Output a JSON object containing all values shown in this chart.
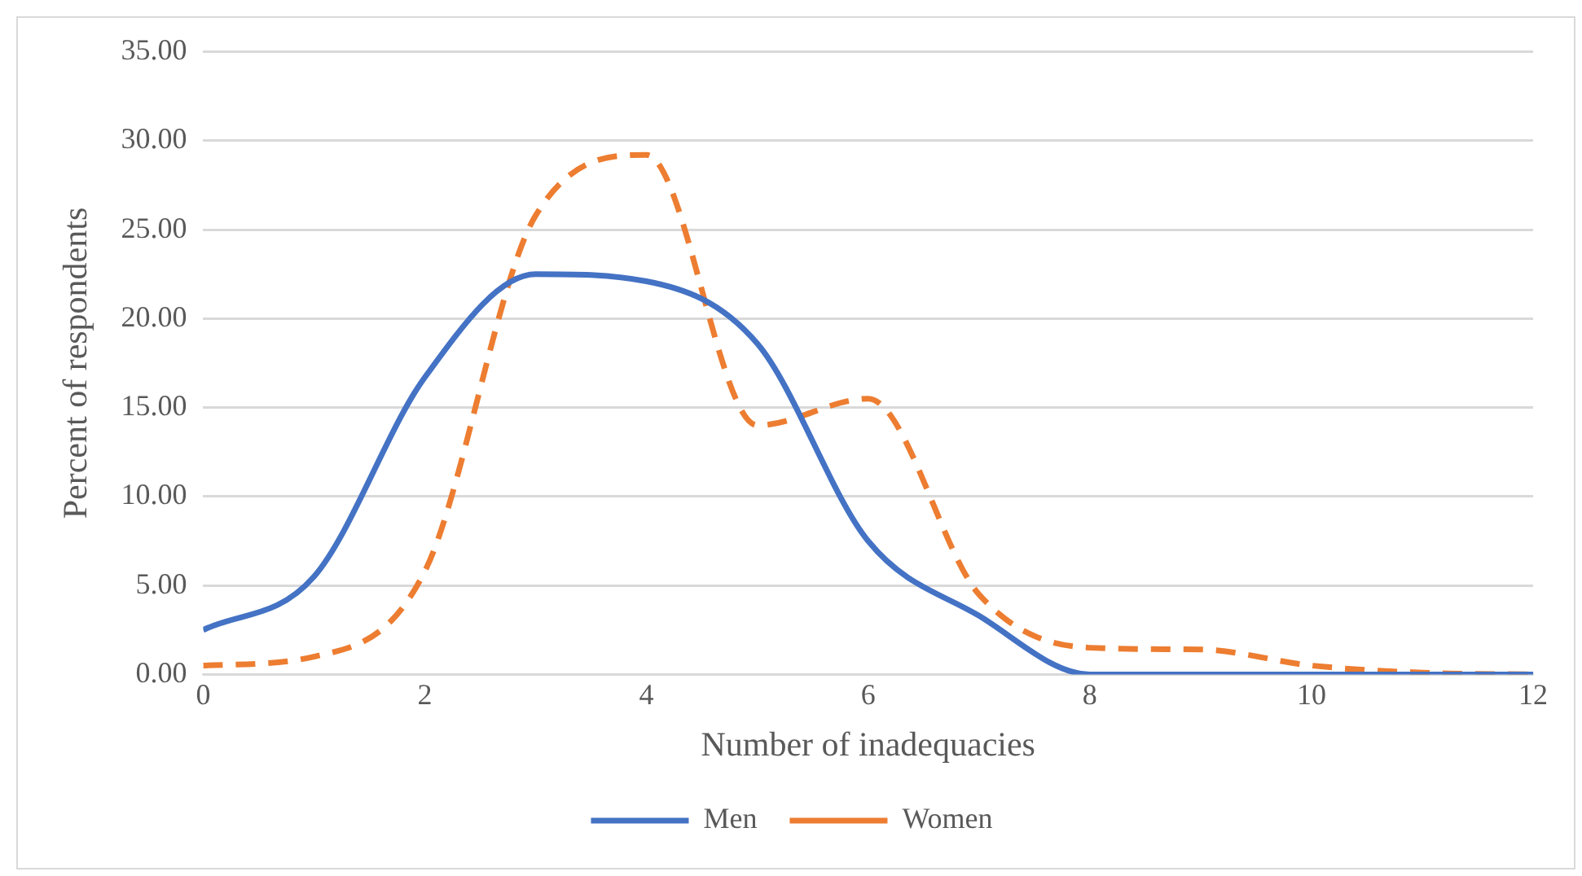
{
  "chart_data": {
    "type": "line",
    "xlabel": "Number of inadequacies",
    "ylabel": "Percent of respondents",
    "x": [
      0,
      1,
      2,
      3,
      4,
      5,
      6,
      7,
      8,
      9,
      10,
      11,
      12
    ],
    "series": [
      {
        "name": "Men",
        "color": "#4472c4",
        "line_style": "solid",
        "values": [
          2.5,
          5.5,
          16.7,
          22.5,
          22.1,
          18.6,
          7.5,
          3.3,
          0,
          0,
          0,
          0,
          0
        ]
      },
      {
        "name": "Women",
        "color": "#ed7d31",
        "line_style": "dashed",
        "values": [
          0.5,
          1.0,
          5.8,
          25.8,
          29.2,
          14.0,
          15.5,
          4.5,
          1.5,
          1.4,
          0.5,
          0.1,
          0
        ]
      }
    ],
    "xlim": [
      0,
      12
    ],
    "xticks": [
      0,
      2,
      4,
      6,
      8,
      10,
      12
    ],
    "ylim": [
      0,
      35
    ],
    "yticks": [
      {
        "value": 0,
        "label": "0.00"
      },
      {
        "value": 5,
        "label": "5.00"
      },
      {
        "value": 10,
        "label": "10.00"
      },
      {
        "value": 15,
        "label": "15.00"
      },
      {
        "value": 20,
        "label": "20.00"
      },
      {
        "value": 25,
        "label": "25.00"
      },
      {
        "value": 30,
        "label": "30.00"
      },
      {
        "value": 35,
        "label": "35.00"
      }
    ],
    "grid": "y",
    "legend": "bottom",
    "marker": "none"
  }
}
